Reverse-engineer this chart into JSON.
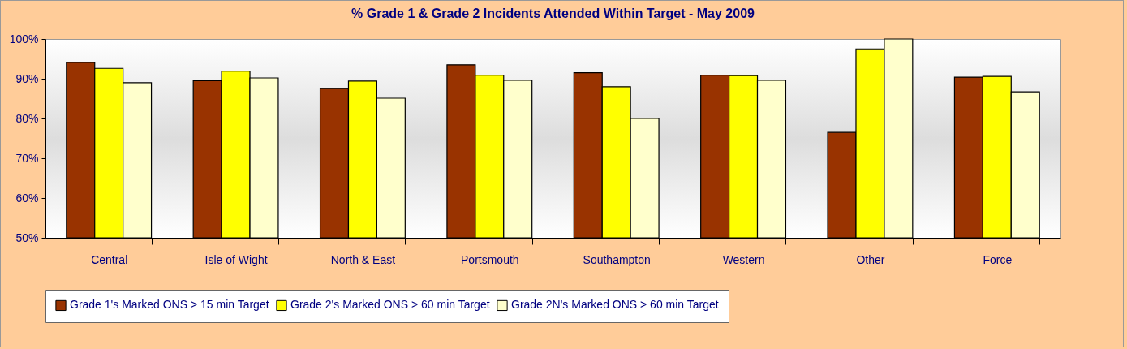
{
  "chart_data": {
    "type": "bar",
    "title": "% Grade 1 & Grade 2 Incidents Attended Within Target - May 2009",
    "categories": [
      "Central",
      "Isle of Wight",
      "North & East",
      "Portsmouth",
      "Southampton",
      "Western",
      "Other",
      "Force"
    ],
    "series": [
      {
        "name": "Grade 1's Marked ONS > 15 min Target",
        "color": "#993300",
        "values": [
          94.1,
          89.5,
          87.5,
          93.5,
          91.5,
          90.9,
          76.5,
          90.4
        ]
      },
      {
        "name": "Grade 2's Marked ONS > 60 min Target",
        "color": "#ffff00",
        "values": [
          92.6,
          91.9,
          89.4,
          90.9,
          88.0,
          90.8,
          97.5,
          90.6
        ]
      },
      {
        "name": "Grade 2N's Marked ONS > 60 min Target",
        "color": "#ffffcc",
        "values": [
          89.0,
          90.2,
          85.1,
          89.6,
          80.0,
          89.6,
          100,
          86.7
        ]
      }
    ],
    "ylim": [
      50,
      100
    ],
    "yticks": [
      {
        "value": 50,
        "label": "50%"
      },
      {
        "value": 60,
        "label": "60%"
      },
      {
        "value": 70,
        "label": "70%"
      },
      {
        "value": 80,
        "label": "80%"
      },
      {
        "value": 90,
        "label": "90%"
      },
      {
        "value": 100,
        "label": "100%"
      }
    ],
    "grid": false,
    "legend": "bottom"
  }
}
